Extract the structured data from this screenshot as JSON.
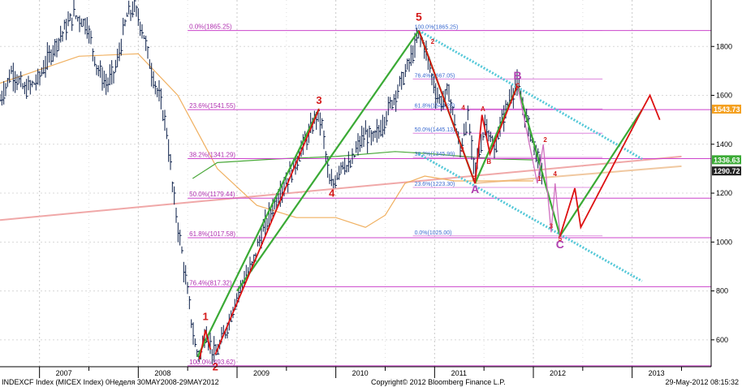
{
  "footer": {
    "left": "INDEXCF Index (MICEX Index) 0Неделя 30MAY2008-29MAY2012",
    "center": "Copyright© 2012 Bloomberg Finance L.P.",
    "right": "29-May-2012 08:15:32"
  },
  "colors": {
    "price": "#0b1f4a",
    "fib": "#cc44cc",
    "fib_text": "#b030b0",
    "fib2_text": "#3a6ad0",
    "green": "#3aaa35",
    "red": "#dd1111",
    "cyan": "#54c8d8",
    "orange_ma": "#f0b060",
    "green_ma": "#4aa83a",
    "trend_pink": "#f0a8a8",
    "trend_orange": "#f0c8a0",
    "wave_label_red": "#d41a1a",
    "wave_label_purple": "#b040b0"
  },
  "chart_data": {
    "type": "line",
    "title": "",
    "ylim": [
      490,
      1990
    ],
    "xlim": [
      2006.6,
      2013.8
    ],
    "y_ticks": [
      600,
      800,
      1000,
      1200,
      1400,
      1600,
      1800
    ],
    "x_tick_labels": [
      {
        "label": "2007",
        "x": 2007.0
      },
      {
        "label": "2008",
        "x": 2008.0
      },
      {
        "label": "2009",
        "x": 2009.0
      },
      {
        "label": "2010",
        "x": 2010.0
      },
      {
        "label": "2011",
        "x": 2011.0
      },
      {
        "label": "2012",
        "x": 2012.0
      },
      {
        "label": "2013",
        "x": 2013.0
      }
    ],
    "price_path": [
      [
        2006.6,
        1580
      ],
      [
        2006.72,
        1700
      ],
      [
        2006.85,
        1620
      ],
      [
        2006.98,
        1660
      ],
      [
        2007.1,
        1760
      ],
      [
        2007.22,
        1850
      ],
      [
        2007.35,
        1930
      ],
      [
        2007.48,
        1890
      ],
      [
        2007.58,
        1720
      ],
      [
        2007.68,
        1640
      ],
      [
        2007.78,
        1720
      ],
      [
        2007.88,
        1920
      ],
      [
        2007.96,
        1960
      ],
      [
        2008.05,
        1860
      ],
      [
        2008.12,
        1720
      ],
      [
        2008.2,
        1610
      ],
      [
        2008.28,
        1480
      ],
      [
        2008.36,
        1180
      ],
      [
        2008.44,
        960
      ],
      [
        2008.52,
        730
      ],
      [
        2008.58,
        560
      ],
      [
        2008.63,
        540
      ],
      [
        2008.68,
        640
      ],
      [
        2008.73,
        580
      ],
      [
        2008.78,
        530
      ],
      [
        2008.84,
        590
      ],
      [
        2008.92,
        680
      ],
      [
        2009.0,
        780
      ],
      [
        2009.08,
        860
      ],
      [
        2009.15,
        900
      ],
      [
        2009.22,
        1000
      ],
      [
        2009.3,
        1080
      ],
      [
        2009.4,
        1180
      ],
      [
        2009.5,
        1250
      ],
      [
        2009.58,
        1310
      ],
      [
        2009.66,
        1390
      ],
      [
        2009.74,
        1450
      ],
      [
        2009.8,
        1520
      ],
      [
        2009.86,
        1480
      ],
      [
        2009.9,
        1350
      ],
      [
        2009.94,
        1230
      ],
      [
        2009.98,
        1240
      ],
      [
        2010.06,
        1330
      ],
      [
        2010.14,
        1300
      ],
      [
        2010.22,
        1390
      ],
      [
        2010.3,
        1440
      ],
      [
        2010.38,
        1420
      ],
      [
        2010.46,
        1470
      ],
      [
        2010.54,
        1550
      ],
      [
        2010.62,
        1620
      ],
      [
        2010.7,
        1690
      ],
      [
        2010.78,
        1770
      ],
      [
        2010.84,
        1850
      ],
      [
        2010.9,
        1800
      ],
      [
        2010.96,
        1700
      ],
      [
        2011.02,
        1600
      ],
      [
        2011.08,
        1570
      ],
      [
        2011.14,
        1620
      ],
      [
        2011.2,
        1500
      ],
      [
        2011.26,
        1370
      ],
      [
        2011.3,
        1460
      ],
      [
        2011.34,
        1510
      ],
      [
        2011.4,
        1290
      ],
      [
        2011.46,
        1380
      ],
      [
        2011.52,
        1500
      ],
      [
        2011.56,
        1430
      ],
      [
        2011.6,
        1360
      ],
      [
        2011.66,
        1470
      ],
      [
        2011.72,
        1540
      ],
      [
        2011.78,
        1610
      ],
      [
        2011.84,
        1640
      ],
      [
        2011.9,
        1540
      ],
      [
        2011.96,
        1460
      ],
      [
        2012.02,
        1380
      ],
      [
        2012.06,
        1310
      ],
      [
        2012.1,
        1290
      ]
    ],
    "fib_levels": [
      {
        "label": "0.0%(1865.25)",
        "value": 1865.25
      },
      {
        "label": "23.6%(1541.55)",
        "value": 1541.55
      },
      {
        "label": "38.2%(1341.29)",
        "value": 1341.29
      },
      {
        "label": "50.0%(1179.44)",
        "value": 1179.44
      },
      {
        "label": "61.8%(1017.58)",
        "value": 1017.58
      },
      {
        "label": "76.4%(817.32)",
        "value": 817.32
      },
      {
        "label": "100.0%(493.62)",
        "value": 493.62
      }
    ],
    "fib2_levels": [
      {
        "label": "100.0%(1865.25)",
        "value": 1865.25
      },
      {
        "label": "76.4%(1667.05)",
        "value": 1667.05
      },
      {
        "label": "61.8%(1544.28)",
        "value": 1544.28
      },
      {
        "label": "50.0%(1445.13)",
        "value": 1445.13
      },
      {
        "label": "38.2%(1345.99)",
        "value": 1345.99
      },
      {
        "label": "23.6%(1223.30)",
        "value": 1223.3
      },
      {
        "label": "0.0%(1025.00)",
        "value": 1025.0
      }
    ],
    "price_labels": [
      {
        "label": "1543.73",
        "value": 1543.73,
        "bg": "#f4a020"
      },
      {
        "label": "1336.63",
        "value": 1336.63,
        "bg": "#3aaa35"
      },
      {
        "label": "1290.72",
        "value": 1290.72,
        "bg": "#222222"
      }
    ],
    "wave_labels": [
      {
        "label": "1",
        "x": 2008.68,
        "y": 680,
        "color": "red",
        "size": 13
      },
      {
        "label": "2",
        "x": 2008.78,
        "y": 475,
        "color": "red",
        "size": 13
      },
      {
        "label": "3",
        "x": 2009.83,
        "y": 1565,
        "color": "red",
        "size": 13
      },
      {
        "label": "4",
        "x": 2009.96,
        "y": 1185,
        "color": "red",
        "size": 13
      },
      {
        "label": "5",
        "x": 2010.84,
        "y": 1905,
        "color": "red",
        "size": 14
      },
      {
        "label": "A",
        "x": 2011.41,
        "y": 1200,
        "color": "purple",
        "size": 14
      },
      {
        "label": "B",
        "x": 2011.84,
        "y": 1665,
        "color": "purple",
        "size": 14
      },
      {
        "label": "C",
        "x": 2012.27,
        "y": 975,
        "color": "purple",
        "size": 14
      },
      {
        "label": "2",
        "x": 2010.98,
        "y": 1810,
        "color": "red",
        "size": 8
      },
      {
        "label": "4",
        "x": 2011.29,
        "y": 1540,
        "color": "red",
        "size": 8
      },
      {
        "label": "A",
        "x": 2011.49,
        "y": 1535,
        "color": "red",
        "size": 8
      },
      {
        "label": "B",
        "x": 2011.55,
        "y": 1320,
        "color": "red",
        "size": 8
      },
      {
        "label": "C",
        "x": 2011.84,
        "y": 1630,
        "color": "red",
        "size": 8
      },
      {
        "label": "3",
        "x": 2011.28,
        "y": 1370,
        "color": "red",
        "size": 8
      },
      {
        "label": "5",
        "x": 2011.4,
        "y": 1250,
        "color": "red",
        "size": 8
      },
      {
        "label": "1",
        "x": 2012.06,
        "y": 1250,
        "color": "red",
        "size": 8
      },
      {
        "label": "2",
        "x": 2012.12,
        "y": 1410,
        "color": "red",
        "size": 8
      },
      {
        "label": "3",
        "x": 2012.18,
        "y": 1055,
        "color": "red",
        "size": 8
      },
      {
        "label": "4",
        "x": 2012.22,
        "y": 1270,
        "color": "red",
        "size": 8
      },
      {
        "label": "5",
        "x": 2012.27,
        "y": 1005,
        "color": "red",
        "size": 8
      }
    ],
    "green_waves": [
      [
        [
          2008.6,
          530
        ],
        [
          2009.83,
          1545
        ]
      ],
      [
        [
          2009.0,
          800
        ],
        [
          2010.84,
          1865
        ]
      ],
      [
        [
          2010.84,
          1865
        ],
        [
          2011.41,
          1240
        ]
      ],
      [
        [
          2011.41,
          1240
        ],
        [
          2011.84,
          1640
        ]
      ],
      [
        [
          2011.84,
          1640
        ],
        [
          2012.27,
          1025
        ]
      ],
      [
        [
          2012.27,
          1025
        ],
        [
          2013.1,
          1540
        ]
      ]
    ],
    "red_waves": [
      [
        [
          2008.62,
          520
        ],
        [
          2008.68,
          640
        ],
        [
          2008.73,
          560
        ]
      ],
      [
        [
          2008.78,
          540
        ],
        [
          2009.83,
          1545
        ]
      ],
      [
        [
          2010.84,
          1865
        ],
        [
          2011.41,
          1240
        ]
      ],
      [
        [
          2011.41,
          1240
        ],
        [
          2011.48,
          1520
        ],
        [
          2011.56,
          1360
        ],
        [
          2011.84,
          1640
        ]
      ],
      [
        [
          2012.27,
          1025
        ],
        [
          2012.42,
          1220
        ],
        [
          2012.48,
          1060
        ],
        [
          2013.1,
          1540
        ]
      ],
      [
        [
          2013.1,
          1540
        ],
        [
          2013.18,
          1600
        ],
        [
          2013.28,
          1500
        ]
      ]
    ],
    "purple_waves": [
      [
        [
          2011.84,
          1640
        ],
        [
          2012.04,
          1240
        ],
        [
          2012.1,
          1400
        ],
        [
          2012.18,
          1040
        ],
        [
          2012.22,
          1240
        ],
        [
          2012.27,
          1025
        ]
      ]
    ],
    "channel_upper": [
      [
        2010.84,
        1865
      ],
      [
        2013.1,
        1340
      ]
    ],
    "channel_lower": [
      [
        2010.84,
        1360
      ],
      [
        2013.1,
        840
      ]
    ],
    "ma_orange": [
      [
        2006.6,
        1650
      ],
      [
        2007.4,
        1760
      ],
      [
        2008.0,
        1770
      ],
      [
        2008.4,
        1600
      ],
      [
        2008.8,
        1300
      ],
      [
        2009.2,
        1150
      ],
      [
        2009.6,
        1100
      ],
      [
        2010.0,
        1100
      ],
      [
        2010.3,
        1060
      ],
      [
        2010.5,
        1110
      ],
      [
        2010.7,
        1240
      ],
      [
        2010.9,
        1270
      ],
      [
        2011.2,
        1250
      ],
      [
        2011.6,
        1250
      ],
      [
        2012.0,
        1250
      ]
    ],
    "ma_green": [
      [
        2008.55,
        1260
      ],
      [
        2008.8,
        1325
      ],
      [
        2009.4,
        1340
      ],
      [
        2010.0,
        1350
      ],
      [
        2010.6,
        1370
      ],
      [
        2011.0,
        1360
      ],
      [
        2011.6,
        1340
      ],
      [
        2012.0,
        1336
      ]
    ],
    "trend_pink": [
      [
        2006.6,
        1090
      ],
      [
        2013.5,
        1350
      ]
    ],
    "trend_orange": [
      [
        2011.4,
        1240
      ],
      [
        2013.5,
        1310
      ]
    ]
  }
}
